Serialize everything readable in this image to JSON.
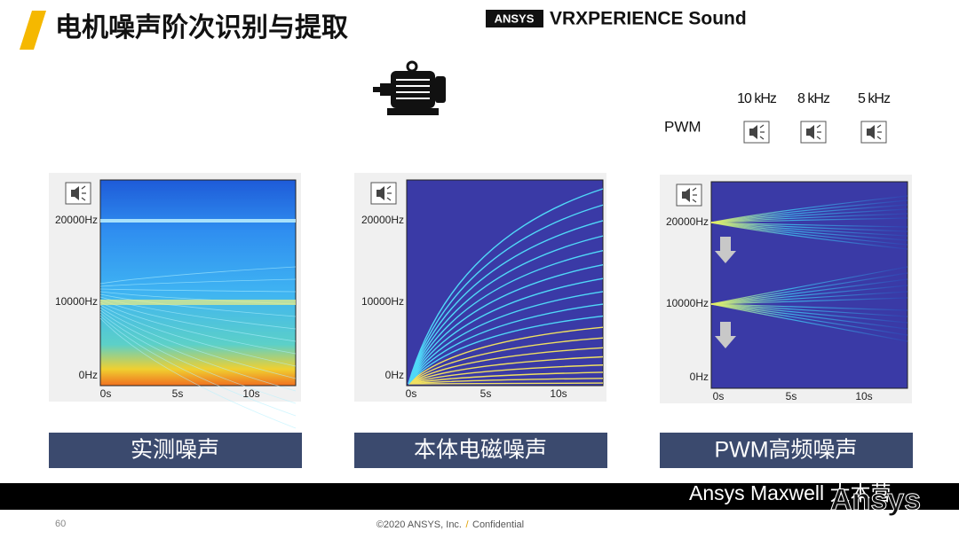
{
  "header": {
    "title": "电机噪声阶次识别与提取",
    "brand": "ANSYS",
    "product": "VRXPERIENCE Sound"
  },
  "pwm": {
    "label": "PWM",
    "frequencies": [
      "10 kHz",
      "8 kHz",
      "5 kHz"
    ]
  },
  "panels": [
    {
      "caption": "实测噪声",
      "yticks": [
        "20000Hz",
        "10000Hz",
        "0Hz"
      ],
      "xticks": [
        "0s",
        "5s",
        "10s"
      ]
    },
    {
      "caption": "本体电磁噪声",
      "yticks": [
        "20000Hz",
        "10000Hz",
        "0Hz"
      ],
      "xticks": [
        "0s",
        "5s",
        "10s"
      ]
    },
    {
      "caption": "PWM高频噪声",
      "yticks": [
        "20000Hz",
        "10000Hz",
        "0Hz"
      ],
      "xticks": [
        "0s",
        "5s",
        "10s"
      ]
    }
  ],
  "footer": {
    "page": "60",
    "copyright": "©2020 ANSYS, Inc.",
    "separator": "/",
    "confidential": "Confidential",
    "watermark": "Ansys Maxwell 大本营",
    "logo": "Ansys"
  }
}
